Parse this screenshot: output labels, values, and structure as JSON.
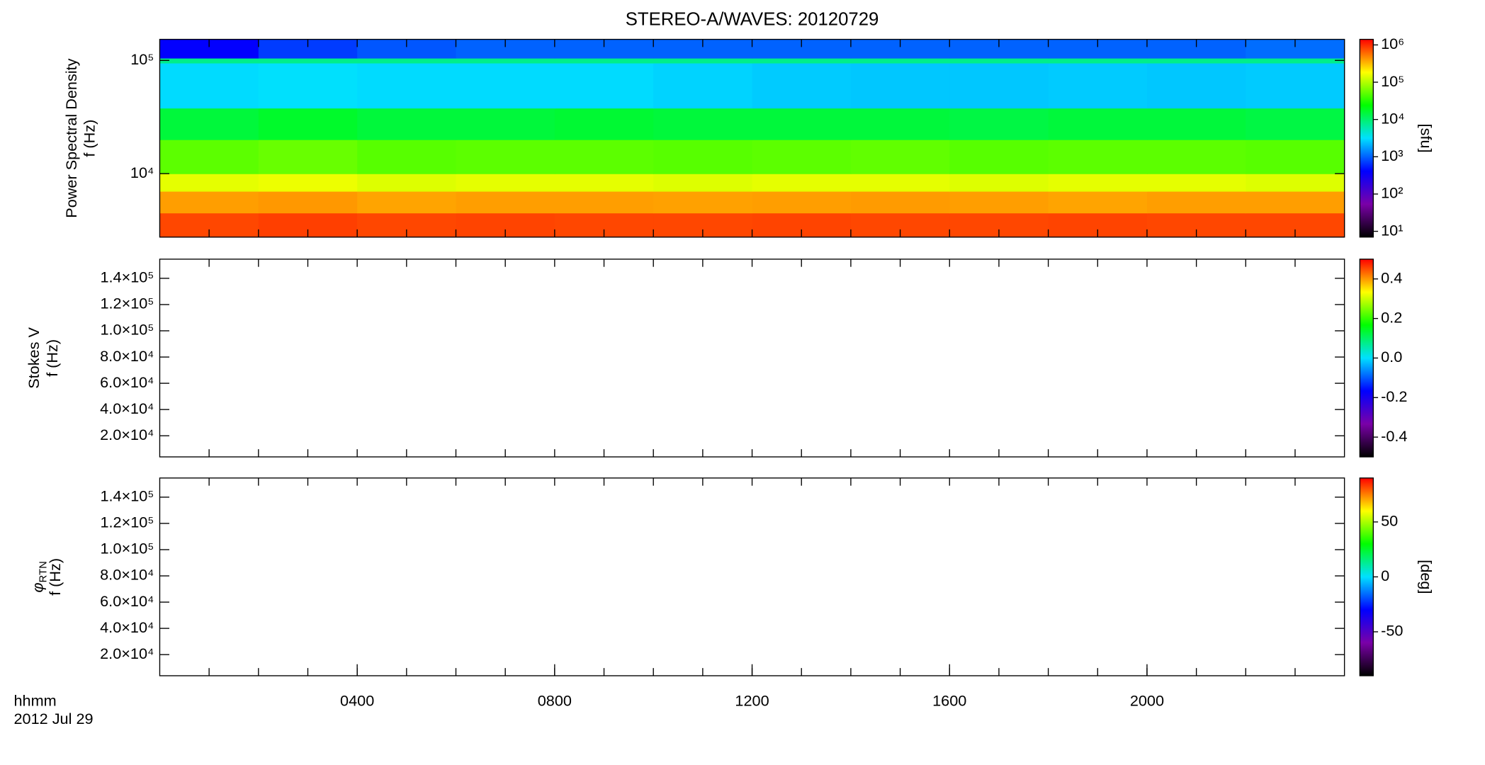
{
  "title": "STEREO-A/WAVES: 20120729",
  "time_axis": {
    "ticks": [
      {
        "value": 4,
        "label": "0400"
      },
      {
        "value": 8,
        "label": "0800"
      },
      {
        "value": 12,
        "label": "1200"
      },
      {
        "value": 16,
        "label": "1600"
      },
      {
        "value": 20,
        "label": "2000"
      }
    ],
    "unit_label": "hhmm",
    "date_label": "2012 Jul 29"
  },
  "chart_data": [
    {
      "type": "heatmap",
      "ylabel": "Power Spectral Density",
      "ylabel_freq": "f (Hz)",
      "ylog": true,
      "xlim": [
        0,
        24
      ],
      "xticks": [
        1,
        2,
        3,
        4,
        5,
        6,
        7,
        8,
        9,
        10,
        11,
        12,
        13,
        14,
        15,
        16,
        17,
        18,
        19,
        20,
        21,
        22,
        23
      ],
      "ylim": [
        2750,
        153500
      ],
      "yticks": [
        {
          "value": 10000,
          "label": "10⁴"
        },
        {
          "value": 100000,
          "label": "10⁵"
        }
      ],
      "x_edges": [
        0,
        2,
        4,
        6,
        8,
        10,
        12,
        14,
        16,
        18,
        20,
        22,
        24
      ],
      "y_edges": [
        2750,
        4500,
        7000,
        10000,
        20000,
        38000,
        95000,
        105000,
        153500
      ],
      "z": [
        [
          800000,
          850000,
          800000,
          820000,
          800000,
          800000,
          820000,
          800000,
          800000,
          820000,
          800000,
          800000
        ],
        [
          400000,
          420000,
          380000,
          400000,
          400000,
          390000,
          400000,
          410000,
          400000,
          380000,
          400000,
          400000
        ],
        [
          150000,
          160000,
          140000,
          150000,
          150000,
          140000,
          150000,
          150000,
          140000,
          150000,
          150000,
          140000
        ],
        [
          50000,
          55000,
          48000,
          50000,
          50000,
          48000,
          50000,
          52000,
          48000,
          50000,
          50000,
          48000
        ],
        [
          15000,
          17000,
          15000,
          15000,
          16000,
          15000,
          15000,
          15000,
          14000,
          15000,
          15000,
          14000
        ],
        [
          3000,
          3200,
          3000,
          3000,
          3000,
          2800,
          2600,
          2500,
          2500,
          2600,
          2500,
          2600
        ],
        [
          8000,
          8000,
          8000,
          8000,
          8000,
          8000,
          8000,
          8000,
          8000,
          8000,
          8000,
          8000
        ],
        [
          400,
          700,
          900,
          1000,
          1000,
          1000,
          1000,
          1000,
          1000,
          1000,
          1000,
          1100
        ]
      ],
      "zlog": true,
      "zlim": [
        7,
        1410000
      ],
      "zticks": [
        {
          "value": 10,
          "label": "10¹"
        },
        {
          "value": 100,
          "label": "10²"
        },
        {
          "value": 1000,
          "label": "10³"
        },
        {
          "value": 10000,
          "label": "10⁴"
        },
        {
          "value": 100000,
          "label": "10⁵"
        },
        {
          "value": 1000000,
          "label": "10⁶"
        }
      ],
      "zlabel": "[sfu]",
      "colormap": [
        "#000000",
        "#7a00a8",
        "#0000ff",
        "#00e0ff",
        "#00ff00",
        "#ffff00",
        "#ff0000"
      ]
    },
    {
      "type": "heatmap",
      "ylabel": "Stokes V",
      "ylabel_freq": "f (Hz)",
      "xlim": [
        0,
        24
      ],
      "xticks": [
        1,
        2,
        3,
        4,
        5,
        6,
        7,
        8,
        9,
        10,
        11,
        12,
        13,
        14,
        15,
        16,
        17,
        18,
        19,
        20,
        21,
        22,
        23
      ],
      "ylim": [
        3900,
        154600
      ],
      "yticks": [
        {
          "value": 20000,
          "label": "2.0×10⁴"
        },
        {
          "value": 40000,
          "label": "4.0×10⁴"
        },
        {
          "value": 60000,
          "label": "6.0×10⁴"
        },
        {
          "value": 80000,
          "label": "8.0×10⁴"
        },
        {
          "value": 100000,
          "label": "1.0×10⁵"
        },
        {
          "value": 120000,
          "label": "1.2×10⁵"
        },
        {
          "value": 140000,
          "label": "1.4×10⁵"
        }
      ],
      "zlim": [
        -0.5,
        0.5
      ],
      "zticks": [
        -0.4,
        -0.2,
        {
          "value": 0,
          "label": "0.0"
        },
        0.2,
        0.4
      ],
      "colormap": [
        "#000000",
        "#7a00a8",
        "#0000ff",
        "#00e0ff",
        "#00ff00",
        "#ffff00",
        "#ff0000"
      ]
    },
    {
      "type": "heatmap",
      "ylabel": "φ",
      "ylabel_sub": "RTN",
      "ylabel_freq": "f (Hz)",
      "xlim": [
        0,
        24
      ],
      "xticks": [
        1,
        2,
        3,
        4,
        5,
        6,
        7,
        8,
        9,
        10,
        11,
        12,
        13,
        14,
        15,
        16,
        17,
        18,
        19,
        20,
        21,
        22,
        23
      ],
      "ylim": [
        3900,
        154600
      ],
      "yticks": [
        {
          "value": 20000,
          "label": "2.0×10⁴"
        },
        {
          "value": 40000,
          "label": "4.0×10⁴"
        },
        {
          "value": 60000,
          "label": "6.0×10⁴"
        },
        {
          "value": 80000,
          "label": "8.0×10⁴"
        },
        {
          "value": 100000,
          "label": "1.0×10⁵"
        },
        {
          "value": 120000,
          "label": "1.2×10⁵"
        },
        {
          "value": 140000,
          "label": "1.4×10⁵"
        }
      ],
      "zlim": [
        -90,
        90
      ],
      "zticks": [
        -50,
        0,
        50
      ],
      "zlabel": "[deg]",
      "colormap": [
        "#000000",
        "#7a00a8",
        "#0000ff",
        "#00e0ff",
        "#00ff00",
        "#ffff00",
        "#ff0000"
      ]
    }
  ]
}
